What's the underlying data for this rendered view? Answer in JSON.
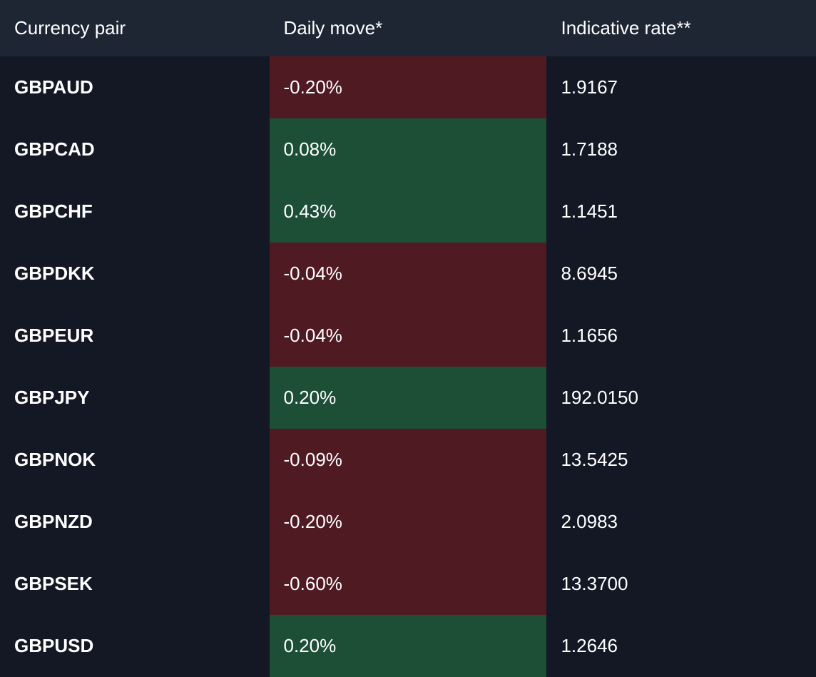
{
  "type": "table",
  "background_color": "#131824",
  "header_background": "#1e2533",
  "text_color": "#ffffff",
  "positive_color": "#1d4e36",
  "negative_color": "#4f1a22",
  "header_fontsize": 26,
  "cell_fontsize": 26,
  "pair_fontweight": 700,
  "columns": [
    {
      "label": "Currency pair",
      "key": "pair"
    },
    {
      "label": "Daily move*",
      "key": "move"
    },
    {
      "label": "Indicative rate**",
      "key": "rate"
    }
  ],
  "rows": [
    {
      "pair": "GBPAUD",
      "move": "-0.20%",
      "rate": "1.9167",
      "direction": "negative"
    },
    {
      "pair": "GBPCAD",
      "move": "0.08%",
      "rate": "1.7188",
      "direction": "positive"
    },
    {
      "pair": "GBPCHF",
      "move": "0.43%",
      "rate": "1.1451",
      "direction": "positive"
    },
    {
      "pair": "GBPDKK",
      "move": "-0.04%",
      "rate": "8.6945",
      "direction": "negative"
    },
    {
      "pair": "GBPEUR",
      "move": "-0.04%",
      "rate": "1.1656",
      "direction": "negative"
    },
    {
      "pair": "GBPJPY",
      "move": "0.20%",
      "rate": "192.0150",
      "direction": "positive"
    },
    {
      "pair": "GBPNOK",
      "move": "-0.09%",
      "rate": "13.5425",
      "direction": "negative"
    },
    {
      "pair": "GBPNZD",
      "move": "-0.20%",
      "rate": "2.0983",
      "direction": "negative"
    },
    {
      "pair": "GBPSEK",
      "move": "-0.60%",
      "rate": "13.3700",
      "direction": "negative"
    },
    {
      "pair": "GBPUSD",
      "move": "0.20%",
      "rate": "1.2646",
      "direction": "positive"
    }
  ]
}
